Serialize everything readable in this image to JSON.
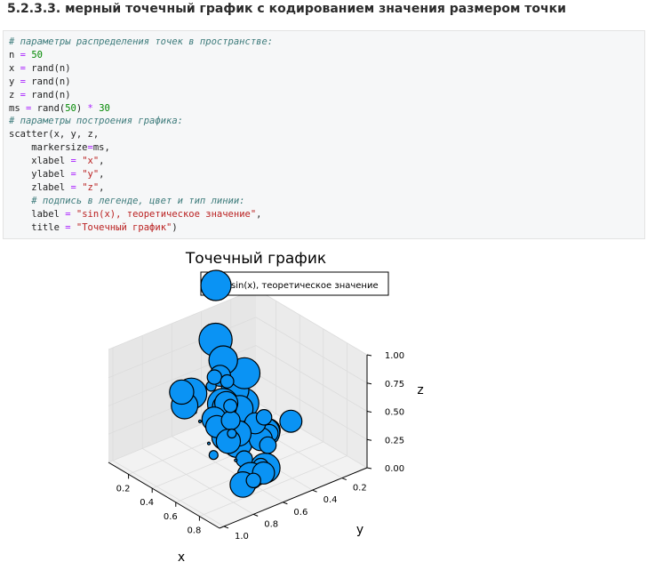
{
  "page": {
    "heading": "5.2.3.3. мерный точечный график с кодированием значения размером точки"
  },
  "code": {
    "lines": [
      [
        {
          "t": "# параметры распределения точек в пространстве:",
          "c": "cm"
        }
      ],
      [
        {
          "t": "n "
        },
        {
          "t": "=",
          "c": "op"
        },
        {
          "t": " "
        },
        {
          "t": "50",
          "c": "nm"
        }
      ],
      [
        {
          "t": "x "
        },
        {
          "t": "=",
          "c": "op"
        },
        {
          "t": " rand(n)"
        }
      ],
      [
        {
          "t": "y "
        },
        {
          "t": "=",
          "c": "op"
        },
        {
          "t": " rand(n)"
        }
      ],
      [
        {
          "t": "z "
        },
        {
          "t": "=",
          "c": "op"
        },
        {
          "t": " rand(n)"
        }
      ],
      [
        {
          "t": "ms "
        },
        {
          "t": "=",
          "c": "op"
        },
        {
          "t": " rand("
        },
        {
          "t": "50",
          "c": "nm"
        },
        {
          "t": ") "
        },
        {
          "t": "*",
          "c": "op"
        },
        {
          "t": " "
        },
        {
          "t": "30",
          "c": "nm"
        }
      ],
      [
        {
          "t": "# параметры построения графика:",
          "c": "cm"
        }
      ],
      [
        {
          "t": "scatter(x, y, z,"
        }
      ],
      [
        {
          "t": "    markersize"
        },
        {
          "t": "=",
          "c": "op"
        },
        {
          "t": "ms,"
        }
      ],
      [
        {
          "t": "    xlabel "
        },
        {
          "t": "=",
          "c": "op"
        },
        {
          "t": " "
        },
        {
          "t": "\"x\"",
          "c": "st"
        },
        {
          "t": ","
        }
      ],
      [
        {
          "t": "    ylabel "
        },
        {
          "t": "=",
          "c": "op"
        },
        {
          "t": " "
        },
        {
          "t": "\"y\"",
          "c": "st"
        },
        {
          "t": ","
        }
      ],
      [
        {
          "t": "    zlabel "
        },
        {
          "t": "=",
          "c": "op"
        },
        {
          "t": " "
        },
        {
          "t": "\"z\"",
          "c": "st"
        },
        {
          "t": ","
        }
      ],
      [
        {
          "t": "    # подпись в легенде, цвет и тип линии:",
          "c": "cm"
        }
      ],
      [
        {
          "t": "    label "
        },
        {
          "t": "=",
          "c": "op"
        },
        {
          "t": " "
        },
        {
          "t": "\"sin(x), теоретическое значение\"",
          "c": "st"
        },
        {
          "t": ","
        }
      ],
      [
        {
          "t": "    title "
        },
        {
          "t": "=",
          "c": "op"
        },
        {
          "t": " "
        },
        {
          "t": "\"Точечный график\"",
          "c": "st"
        },
        {
          "t": ")"
        }
      ]
    ]
  },
  "colors": {
    "marker_fill": "#0a93f4",
    "marker_edge": "#000000",
    "pane": "#f2f2f2",
    "grid": "#dcdcdc"
  },
  "chart_data": {
    "type": "scatter",
    "projection": "3d",
    "title": "Точечный график",
    "xlabel": "x",
    "ylabel": "y",
    "zlabel": "z",
    "legend": {
      "label": "sin(x), теоретическое значение",
      "placement": "top"
    },
    "grid": true,
    "xticks": [
      "0.2",
      "0.4",
      "0.6",
      "0.8"
    ],
    "yticks": [
      "0.2",
      "0.4",
      "0.6",
      "0.8",
      "1.0"
    ],
    "zticks": [
      "0.00",
      "0.25",
      "0.50",
      "0.75",
      "1.00"
    ],
    "xlim": [
      0.03,
      0.97
    ],
    "ylim": [
      0.03,
      1.03
    ],
    "zlim": [
      0.0,
      1.0
    ],
    "points": [
      {
        "x": 0.31,
        "y": 0.38,
        "z": 0.0,
        "s": 27
      },
      {
        "x": 0.62,
        "y": 0.44,
        "z": 0.0,
        "s": 27
      },
      {
        "x": 0.48,
        "y": 0.5,
        "z": 0.47,
        "s": 24
      },
      {
        "x": 0.3,
        "y": 0.52,
        "z": 0.98,
        "s": 30
      },
      {
        "x": 0.52,
        "y": 0.5,
        "z": 0.81,
        "s": 28
      },
      {
        "x": 0.49,
        "y": 0.62,
        "z": 0.97,
        "s": 26
      },
      {
        "x": 0.4,
        "y": 0.55,
        "z": 0.49,
        "s": 28
      },
      {
        "x": 0.39,
        "y": 0.4,
        "z": 0.41,
        "s": 27
      },
      {
        "x": 0.27,
        "y": 0.66,
        "z": 0.56,
        "s": 28
      },
      {
        "x": 0.45,
        "y": 0.58,
        "z": 0.51,
        "s": 22
      },
      {
        "x": 0.44,
        "y": 0.5,
        "z": 0.61,
        "s": 25
      },
      {
        "x": 0.3,
        "y": 0.75,
        "z": 0.64,
        "s": 22
      },
      {
        "x": 0.49,
        "y": 0.6,
        "z": 0.58,
        "s": 21
      },
      {
        "x": 0.38,
        "y": 0.52,
        "z": 0.17,
        "s": 24
      },
      {
        "x": 0.45,
        "y": 0.65,
        "z": 0.44,
        "s": 22
      },
      {
        "x": 0.6,
        "y": 0.25,
        "z": 0.3,
        "s": 20
      },
      {
        "x": 0.57,
        "y": 0.43,
        "z": 0.22,
        "s": 21
      },
      {
        "x": 0.53,
        "y": 0.55,
        "z": 0.31,
        "s": 23
      },
      {
        "x": 0.51,
        "y": 0.35,
        "z": 0.2,
        "s": 26
      },
      {
        "x": 0.3,
        "y": 0.44,
        "z": 0.08,
        "s": 21
      },
      {
        "x": 0.56,
        "y": 0.72,
        "z": 0.48,
        "s": 20
      },
      {
        "x": 0.49,
        "y": 0.35,
        "z": 0.22,
        "s": 22
      },
      {
        "x": 0.3,
        "y": 0.73,
        "z": 0.51,
        "s": 24
      },
      {
        "x": 0.6,
        "y": 0.73,
        "z": 0.96,
        "s": 19
      },
      {
        "x": 0.4,
        "y": 0.24,
        "z": 0.09,
        "s": 21
      },
      {
        "x": 0.69,
        "y": 0.73,
        "z": 0.62,
        "s": 17
      },
      {
        "x": 0.56,
        "y": 0.46,
        "z": 0.37,
        "s": 19
      },
      {
        "x": 0.73,
        "y": 0.67,
        "z": 0.27,
        "s": 15
      },
      {
        "x": 0.58,
        "y": 0.38,
        "z": 0.25,
        "s": 16
      },
      {
        "x": 0.77,
        "y": 0.59,
        "z": 0.19,
        "s": 14
      },
      {
        "x": 0.7,
        "y": 0.74,
        "z": 0.76,
        "s": 12
      },
      {
        "x": 0.71,
        "y": 0.77,
        "z": 1.0,
        "s": 12
      },
      {
        "x": 0.64,
        "y": 0.8,
        "z": 1.01,
        "s": 13
      },
      {
        "x": 0.6,
        "y": 0.79,
        "z": 0.9,
        "s": 9
      },
      {
        "x": 0.77,
        "y": 0.91,
        "z": 0.46,
        "s": 8
      },
      {
        "x": 0.77,
        "y": 0.55,
        "z": 0.33,
        "s": 7
      },
      {
        "x": 0.5,
        "y": 0.33,
        "z": 0.11,
        "s": 8
      },
      {
        "x": 0.24,
        "y": 0.61,
        "z": 0.35,
        "s": 2
      },
      {
        "x": 0.78,
        "y": 0.6,
        "z": 0.05,
        "s": 2
      },
      {
        "x": 0.63,
        "y": 0.89,
        "z": 0.66,
        "s": 2
      },
      {
        "x": 0.78,
        "y": 0.95,
        "z": 0.59,
        "s": 2
      },
      {
        "x": 0.96,
        "y": 0.72,
        "z": 0.81,
        "s": 14
      },
      {
        "x": 0.9,
        "y": 0.89,
        "z": 0.72,
        "s": 8
      },
      {
        "x": 0.93,
        "y": 0.84,
        "z": 0.26,
        "s": 23
      },
      {
        "x": 0.82,
        "y": 0.85,
        "z": 0.58,
        "s": 22
      },
      {
        "x": 0.98,
        "y": 0.74,
        "z": 0.34,
        "s": 20
      },
      {
        "x": 0.92,
        "y": 0.78,
        "z": 0.3,
        "s": 24
      },
      {
        "x": 0.98,
        "y": 0.71,
        "z": 0.57,
        "s": 15
      },
      {
        "x": 0.97,
        "y": 0.8,
        "z": 0.3,
        "s": 13
      },
      {
        "x": 0.92,
        "y": 0.88,
        "z": 0.49,
        "s": 2
      }
    ]
  }
}
